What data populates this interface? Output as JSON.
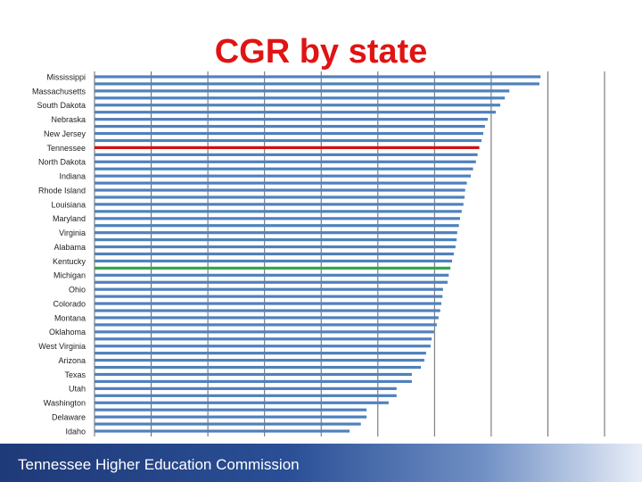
{
  "chart_data": {
    "type": "hbar",
    "title": "CGR by state",
    "categories": [
      "Mississippi",
      null,
      "Massachusetts",
      null,
      "South Dakota",
      null,
      "Nebraska",
      null,
      "New Jersey",
      null,
      "Tennessee",
      null,
      "North Dakota",
      null,
      "Indiana",
      null,
      "Rhode Island",
      null,
      "Louisiana",
      null,
      "Maryland",
      null,
      "Virginia",
      null,
      "Alabama",
      null,
      "Kentucky",
      null,
      "Michigan",
      null,
      "Ohio",
      null,
      "Colorado",
      null,
      "Montana",
      null,
      "Oklahoma",
      null,
      "West Virginia",
      null,
      "Arizona",
      null,
      "Texas",
      null,
      "Utah",
      null,
      "Washington",
      null,
      "Delaware",
      null,
      "Idaho"
    ],
    "values": [
      78.7,
      78.5,
      73.2,
      72.4,
      71.6,
      70.8,
      69.4,
      68.9,
      68.6,
      68.3,
      67.9,
      67.6,
      67.3,
      66.8,
      66.4,
      65.7,
      65.4,
      65.3,
      65.1,
      64.8,
      64.5,
      64.3,
      64.0,
      63.9,
      63.7,
      63.4,
      63.1,
      62.8,
      62.5,
      62.3,
      61.5,
      61.4,
      61.2,
      61.0,
      60.7,
      60.4,
      59.9,
      59.5,
      59.3,
      58.5,
      58.2,
      57.6,
      56.0,
      56.0,
      53.3,
      53.3,
      51.9,
      48.0,
      48.0,
      47.0,
      45.0
    ],
    "color": "#4f81bd",
    "highlights": [
      {
        "index": 10,
        "color": "#d01010"
      },
      {
        "index": 27,
        "color": "#2fa84a"
      }
    ],
    "xlim": [
      0,
      90
    ],
    "grid": true
  },
  "footer": {
    "text": "Tennessee Higher Education Commission"
  }
}
